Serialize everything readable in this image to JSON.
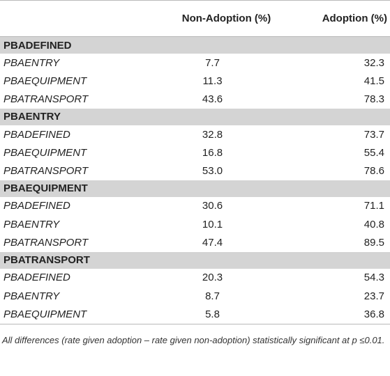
{
  "table": {
    "columns": [
      "",
      "Non-Adoption (%)",
      "Adoption (%)"
    ],
    "groups": [
      {
        "title": "PBADEFINED",
        "rows": [
          {
            "label": "PBAENTRY",
            "non_adoption": "7.7",
            "adoption": "32.3"
          },
          {
            "label": "PBAEQUIPMENT",
            "non_adoption": "11.3",
            "adoption": "41.5"
          },
          {
            "label": "PBATRANSPORT",
            "non_adoption": "43.6",
            "adoption": "78.3"
          }
        ]
      },
      {
        "title": "PBAENTRY",
        "rows": [
          {
            "label": "PBADEFINED",
            "non_adoption": "32.8",
            "adoption": "73.7"
          },
          {
            "label": "PBAEQUIPMENT",
            "non_adoption": "16.8",
            "adoption": "55.4"
          },
          {
            "label": "PBATRANSPORT",
            "non_adoption": "53.0",
            "adoption": "78.6"
          }
        ]
      },
      {
        "title": "PBAEQUIPMENT",
        "rows": [
          {
            "label": "PBADEFINED",
            "non_adoption": "30.6",
            "adoption": "71.1"
          },
          {
            "label": "PBAENTRY",
            "non_adoption": "10.1",
            "adoption": "40.8"
          },
          {
            "label": "PBATRANSPORT",
            "non_adoption": "47.4",
            "adoption": "89.5"
          }
        ]
      },
      {
        "title": "PBATRANSPORT",
        "rows": [
          {
            "label": "PBADEFINED",
            "non_adoption": "20.3",
            "adoption": "54.3"
          },
          {
            "label": "PBAENTRY",
            "non_adoption": "8.7",
            "adoption": "23.7"
          },
          {
            "label": "PBAEQUIPMENT",
            "non_adoption": "5.8",
            "adoption": "36.8"
          }
        ]
      }
    ]
  },
  "footnote": "All differences (rate given adoption – rate given non-adoption) statistically significant at p ≤0.01.",
  "colors": {
    "group_band": "#d4d4d4",
    "rule": "#b9b9b9",
    "text": "#222222"
  }
}
